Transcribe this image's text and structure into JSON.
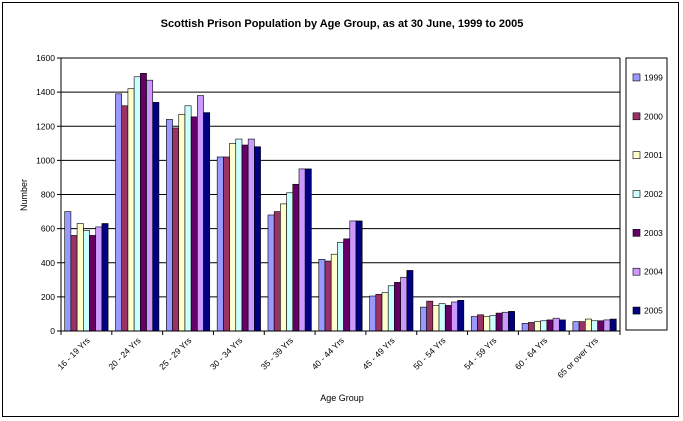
{
  "chart_data": {
    "type": "bar",
    "title": "Scottish Prison Population by Age Group, as at 30 June, 1999  to 2005",
    "xlabel": "Age Group",
    "ylabel": "Number",
    "ylim": [
      0,
      1600
    ],
    "yticks": [
      0,
      200,
      400,
      600,
      800,
      1000,
      1200,
      1400,
      1600
    ],
    "grid": true,
    "legend_position": "right",
    "categories": [
      "16 - 19 Yrs",
      "20 - 24 Yrs",
      "25 - 29 Yrs",
      "30 - 34 Yrs",
      "35 - 39 Yrs",
      "40 - 44 Yrs",
      "45 - 49 Yrs",
      "50 - 54 Yrs",
      "54 - 59 Yrs",
      "60 - 64 Yrs",
      "65 or over Yrs"
    ],
    "series": [
      {
        "name": "1999",
        "color": "#9999FF",
        "values": [
          700,
          1390,
          1240,
          1020,
          680,
          420,
          205,
          140,
          85,
          45,
          55
        ]
      },
      {
        "name": "2000",
        "color": "#993366",
        "values": [
          560,
          1320,
          1190,
          1020,
          700,
          410,
          215,
          175,
          95,
          50,
          55
        ]
      },
      {
        "name": "2001",
        "color": "#FFFFCC",
        "values": [
          630,
          1420,
          1270,
          1100,
          745,
          450,
          225,
          150,
          85,
          55,
          70
        ]
      },
      {
        "name": "2002",
        "color": "#CCFFFF",
        "values": [
          590,
          1490,
          1320,
          1125,
          810,
          520,
          265,
          160,
          90,
          60,
          60
        ]
      },
      {
        "name": "2003",
        "color": "#660066",
        "values": [
          560,
          1510,
          1255,
          1090,
          860,
          540,
          285,
          150,
          105,
          65,
          60
        ]
      },
      {
        "name": "2004",
        "color": "#CC99FF",
        "values": [
          610,
          1470,
          1380,
          1125,
          950,
          645,
          315,
          170,
          110,
          75,
          65
        ]
      },
      {
        "name": "2005",
        "color": "#000080",
        "values": [
          630,
          1340,
          1280,
          1080,
          950,
          645,
          355,
          180,
          115,
          65,
          70
        ]
      }
    ]
  }
}
